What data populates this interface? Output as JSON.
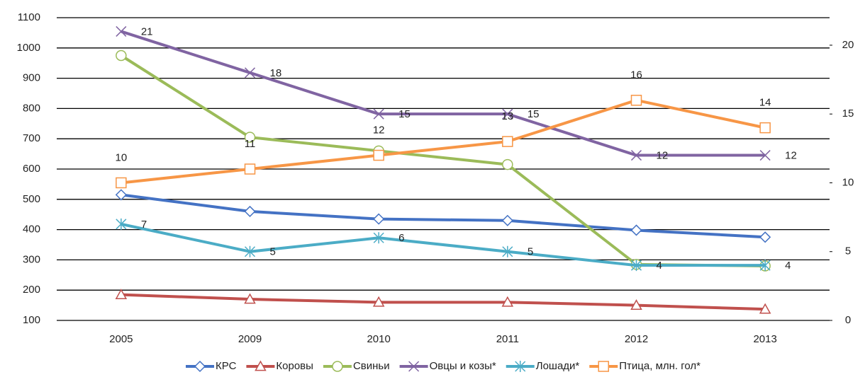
{
  "chart_data": {
    "type": "line",
    "categories": [
      "2005",
      "2009",
      "2010",
      "2011",
      "2012",
      "2013"
    ],
    "ylim": [
      100,
      1100
    ],
    "yticks": [
      100,
      200,
      300,
      400,
      500,
      600,
      700,
      800,
      900,
      1000,
      1100
    ],
    "y2lim": [
      0,
      22
    ],
    "y2ticks": [
      0,
      5,
      10,
      15,
      20
    ],
    "grid": true,
    "legend": "bottom",
    "series": [
      {
        "name": "КРС",
        "color": "#4472c4",
        "marker": "diamond",
        "values": [
          515,
          460,
          435,
          430,
          398,
          375
        ]
      },
      {
        "name": "Коровы",
        "color": "#c0504d",
        "marker": "triangle",
        "values": [
          185,
          170,
          160,
          160,
          150,
          137
        ]
      },
      {
        "name": "Свиньи",
        "color": "#9bbb59",
        "marker": "circle",
        "values": [
          975,
          705,
          660,
          615,
          285,
          280
        ]
      },
      {
        "name": "Овцы и козы*",
        "color": "#8064a2",
        "marker": "x",
        "axis": "y2",
        "labels": "right",
        "values": [
          21,
          18,
          15,
          15,
          12,
          12
        ]
      },
      {
        "name": "Лошади*",
        "color": "#4bacc6",
        "marker": "star",
        "axis": "y2",
        "labels": "right",
        "values": [
          7,
          5,
          6,
          5,
          4,
          4
        ]
      },
      {
        "name": "Птица, млн. гол*",
        "color": "#f79646",
        "marker": "square",
        "axis": "y2",
        "labels": "above",
        "values": [
          10,
          11,
          12,
          13,
          16,
          14
        ]
      }
    ]
  }
}
